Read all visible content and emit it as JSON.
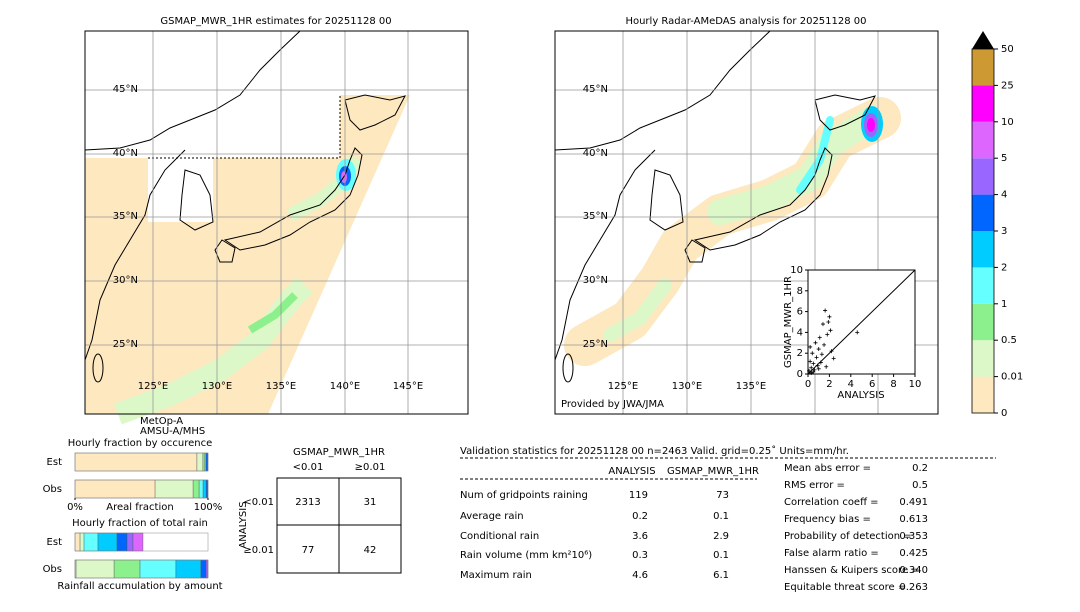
{
  "maps": {
    "left": {
      "title": "GSMAP_MWR_1HR estimates for 20251128 00",
      "lat_labels": [
        "45°N",
        "40°N",
        "35°N",
        "30°N",
        "25°N"
      ],
      "lon_labels": [
        "125°E",
        "130°E",
        "135°E",
        "140°E",
        "145°E"
      ],
      "satellite_note": [
        "MetOp-A",
        "AMSU-A/MHS"
      ]
    },
    "right": {
      "title": "Hourly Radar-AMeDAS analysis for 20251128 00",
      "lat_labels": [
        "45°N",
        "40°N",
        "35°N",
        "30°N",
        "25°N"
      ],
      "lon_labels": [
        "125°E",
        "130°E",
        "135°E"
      ],
      "credit": "Provided by JWA/JMA"
    }
  },
  "chart_data": [
    {
      "type": "scatter",
      "xlabel": "ANALYSIS",
      "ylabel": "GSMAP_MWR_1HR",
      "xlim": [
        0,
        10
      ],
      "ylim": [
        0,
        10
      ],
      "xticks": [
        0,
        2,
        4,
        6,
        8,
        10
      ],
      "yticks": [
        0,
        2,
        4,
        6,
        8,
        10
      ],
      "color": "#000000",
      "x": [
        0.1,
        0.2,
        0.3,
        0.4,
        0.5,
        0.6,
        0.8,
        1.0,
        1.1,
        1.2,
        1.4,
        1.5,
        1.6,
        1.8,
        2.0,
        2.1,
        2.2,
        0.3,
        0.5,
        0.7,
        0.9,
        1.3,
        1.7,
        2.4,
        4.6,
        0.2,
        1.0,
        1.9
      ],
      "y": [
        0.3,
        1.2,
        0.6,
        2.0,
        1.0,
        0.4,
        1.6,
        2.4,
        3.5,
        1.1,
        4.8,
        2.8,
        6.1,
        3.8,
        5.5,
        4.2,
        2.2,
        0.1,
        0.2,
        3.0,
        0.8,
        1.9,
        0.7,
        1.5,
        4.0,
        2.6,
        0.5,
        5.0
      ]
    },
    {
      "type": "colorbar",
      "bins": [
        0,
        0.01,
        0.5,
        1,
        2,
        3,
        4,
        5,
        10,
        25,
        50
      ],
      "colors": [
        "#fde8c0",
        "#dcf8c8",
        "#8cf08c",
        "#66ffff",
        "#00ccff",
        "#0066ff",
        "#9966ff",
        "#dd66ff",
        "#ff00ff",
        "#cc9933"
      ],
      "extend_color": "#000000"
    },
    {
      "type": "stacked_bar",
      "title": "Hourly fraction by occurence",
      "xlabel": "Areal fraction",
      "xlim": [
        0,
        100
      ],
      "xticks": [
        {
          "value": 0,
          "label": "0%"
        },
        {
          "value": 100,
          "label": "100%"
        }
      ],
      "categories": [
        "Est",
        "Obs"
      ],
      "series": [
        {
          "color": "#fde8c0",
          "values": [
            91.7,
            60.2
          ]
        },
        {
          "color": "#dcf8c8",
          "values": [
            4.5,
            28.6
          ]
        },
        {
          "color": "#8cf08c",
          "values": [
            1.5,
            4.5
          ]
        },
        {
          "color": "#66ffff",
          "values": [
            0.8,
            3.0
          ]
        },
        {
          "color": "#00ccff",
          "values": [
            0,
            2.3
          ]
        },
        {
          "color": "#0066ff",
          "values": [
            1.5,
            1.4
          ]
        }
      ]
    },
    {
      "type": "stacked_bar",
      "title": "Hourly fraction of total rain",
      "xlabel": "Rainfall accumulation by amount",
      "xlim": [
        0,
        100
      ],
      "categories": [
        "Est",
        "Obs"
      ],
      "series": [
        {
          "color": "#fde8c0",
          "values": [
            3.8,
            0.8
          ]
        },
        {
          "color": "#dcf8c8",
          "values": [
            3.0,
            28.6
          ]
        },
        {
          "color": "#8cf08c",
          "values": [
            0,
            19.5
          ]
        },
        {
          "color": "#66ffff",
          "values": [
            10.5,
            27.0
          ]
        },
        {
          "color": "#00ccff",
          "values": [
            14.3,
            18.8
          ]
        },
        {
          "color": "#0066ff",
          "values": [
            7.5,
            3.8
          ]
        },
        {
          "color": "#9966ff",
          "values": [
            4.5,
            1.5
          ]
        },
        {
          "color": "#dd66ff",
          "values": [
            7.5,
            0
          ]
        }
      ]
    }
  ],
  "contingency": {
    "title": "GSMAP_MWR_1HR",
    "col_headers": [
      "<0.01",
      "≥0.01"
    ],
    "row_title": "ANALYSIS",
    "row_headers": [
      "<0.01",
      "≥0.01"
    ],
    "cells": [
      [
        2313,
        31
      ],
      [
        77,
        42
      ]
    ]
  },
  "validation": {
    "header": "Validation statistics for 20251128 00  n=2463 Valid. grid=0.25˚ Units=mm/hr.",
    "columns": [
      "ANALYSIS",
      "GSMAP_MWR_1HR"
    ],
    "rows": [
      {
        "label": "Num of gridpoints raining",
        "values": [
          119,
          73
        ]
      },
      {
        "label": "Average rain",
        "values": [
          0.2,
          0.1
        ]
      },
      {
        "label": "Conditional rain",
        "values": [
          3.6,
          2.9
        ]
      },
      {
        "label": "Rain volume (mm km²10⁶)",
        "values": [
          0.3,
          0.1
        ]
      },
      {
        "label": "Maximum rain",
        "values": [
          4.6,
          6.1
        ]
      }
    ],
    "scores": [
      {
        "label": "Mean abs error =",
        "value": "0.2"
      },
      {
        "label": "RMS error =",
        "value": "0.5"
      },
      {
        "label": "Correlation coeff =",
        "value": "0.491"
      },
      {
        "label": "Frequency bias =",
        "value": "0.613"
      },
      {
        "label": "Probability of detection =",
        "value": "0.353"
      },
      {
        "label": "False alarm ratio =",
        "value": "0.425"
      },
      {
        "label": "Hanssen & Kuipers score =",
        "value": "0.340"
      },
      {
        "label": "Equitable threat score =",
        "value": "0.263"
      }
    ]
  }
}
